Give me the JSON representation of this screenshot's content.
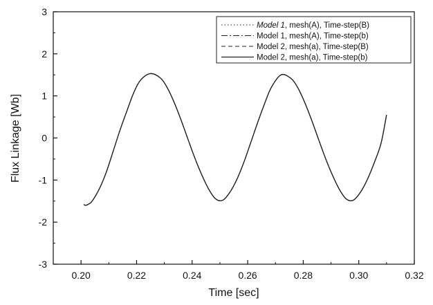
{
  "chart_data": {
    "type": "line",
    "title": "",
    "xlabel": "Time [sec]",
    "ylabel": "Flux Linkage [Wb]",
    "xlim": [
      0.19,
      0.32
    ],
    "ylim": [
      -3,
      3
    ],
    "xticks": [
      0.2,
      0.22,
      0.24,
      0.26,
      0.28,
      0.3,
      0.32
    ],
    "xtick_labels": [
      "0.20",
      "0.22",
      "0.24",
      "0.26",
      "0.28",
      "0.30",
      "0.32"
    ],
    "yticks": [
      -3,
      -2,
      -1,
      0,
      1,
      2,
      3
    ],
    "ytick_labels": [
      "-3",
      "-2",
      "-1",
      "0",
      "1",
      "2",
      "3"
    ],
    "grid": false,
    "legend_position": "top-right",
    "series": [
      {
        "name": "Model 1, mesh(A), Time-step(B)",
        "line_style": "dotted",
        "x": [
          0.201,
          0.2015,
          0.2025,
          0.204,
          0.2065,
          0.209,
          0.2115,
          0.214,
          0.2165,
          0.219,
          0.2215,
          0.225,
          0.2285,
          0.231,
          0.2335,
          0.236,
          0.2385,
          0.241,
          0.2435,
          0.246,
          0.2485,
          0.251,
          0.2535,
          0.256,
          0.2585,
          0.261,
          0.2635,
          0.266,
          0.2685,
          0.272,
          0.2755,
          0.278,
          0.2805,
          0.283,
          0.2855,
          0.288,
          0.2905,
          0.293,
          0.2955,
          0.298,
          0.3005,
          0.303,
          0.3055,
          0.308,
          0.31
        ],
        "y": [
          -1.58,
          -1.6,
          -1.58,
          -1.5,
          -1.22,
          -0.83,
          -0.33,
          0.18,
          0.64,
          1.08,
          1.38,
          1.53,
          1.43,
          1.2,
          0.85,
          0.43,
          -0.03,
          -0.48,
          -0.88,
          -1.22,
          -1.45,
          -1.48,
          -1.3,
          -1.0,
          -0.6,
          -0.13,
          0.35,
          0.8,
          1.2,
          1.5,
          1.42,
          1.2,
          0.85,
          0.43,
          -0.03,
          -0.48,
          -0.88,
          -1.22,
          -1.45,
          -1.48,
          -1.3,
          -1.0,
          -0.6,
          -0.13,
          0.55
        ]
      },
      {
        "name": "Model 1, mesh(A), Time-step(b)",
        "line_style": "dash-dot",
        "x": [
          0.201,
          0.2015,
          0.2025,
          0.204,
          0.2065,
          0.209,
          0.2115,
          0.214,
          0.2165,
          0.219,
          0.2215,
          0.225,
          0.2285,
          0.231,
          0.2335,
          0.236,
          0.2385,
          0.241,
          0.2435,
          0.246,
          0.2485,
          0.251,
          0.2535,
          0.256,
          0.2585,
          0.261,
          0.2635,
          0.266,
          0.2685,
          0.272,
          0.2755,
          0.278,
          0.2805,
          0.283,
          0.2855,
          0.288,
          0.2905,
          0.293,
          0.2955,
          0.298,
          0.3005,
          0.303,
          0.3055,
          0.308,
          0.31
        ],
        "y": [
          -1.58,
          -1.6,
          -1.58,
          -1.5,
          -1.22,
          -0.83,
          -0.33,
          0.18,
          0.64,
          1.08,
          1.38,
          1.53,
          1.43,
          1.2,
          0.85,
          0.43,
          -0.03,
          -0.48,
          -0.88,
          -1.22,
          -1.45,
          -1.48,
          -1.3,
          -1.0,
          -0.6,
          -0.13,
          0.35,
          0.8,
          1.2,
          1.5,
          1.42,
          1.2,
          0.85,
          0.43,
          -0.03,
          -0.48,
          -0.88,
          -1.22,
          -1.45,
          -1.48,
          -1.3,
          -1.0,
          -0.6,
          -0.13,
          0.55
        ]
      },
      {
        "name": "Model 2, mesh(a), Time-step(B)",
        "line_style": "dashed",
        "x": [
          0.201,
          0.2015,
          0.2025,
          0.204,
          0.2065,
          0.209,
          0.2115,
          0.214,
          0.2165,
          0.219,
          0.2215,
          0.225,
          0.2285,
          0.231,
          0.2335,
          0.236,
          0.2385,
          0.241,
          0.2435,
          0.246,
          0.2485,
          0.251,
          0.2535,
          0.256,
          0.2585,
          0.261,
          0.2635,
          0.266,
          0.2685,
          0.272,
          0.2755,
          0.278,
          0.2805,
          0.283,
          0.2855,
          0.288,
          0.2905,
          0.293,
          0.2955,
          0.298,
          0.3005,
          0.303,
          0.3055,
          0.308,
          0.31
        ],
        "y": [
          -1.58,
          -1.6,
          -1.58,
          -1.5,
          -1.22,
          -0.83,
          -0.33,
          0.18,
          0.64,
          1.08,
          1.38,
          1.53,
          1.43,
          1.2,
          0.85,
          0.43,
          -0.03,
          -0.48,
          -0.88,
          -1.22,
          -1.45,
          -1.48,
          -1.3,
          -1.0,
          -0.6,
          -0.13,
          0.35,
          0.8,
          1.2,
          1.5,
          1.42,
          1.2,
          0.85,
          0.43,
          -0.03,
          -0.48,
          -0.88,
          -1.22,
          -1.45,
          -1.48,
          -1.3,
          -1.0,
          -0.6,
          -0.13,
          0.55
        ]
      },
      {
        "name": "Model 2, mesh(a), Time-step(b)",
        "line_style": "solid",
        "x": [
          0.201,
          0.2015,
          0.2025,
          0.204,
          0.2065,
          0.209,
          0.2115,
          0.214,
          0.2165,
          0.219,
          0.2215,
          0.225,
          0.2285,
          0.231,
          0.2335,
          0.236,
          0.2385,
          0.241,
          0.2435,
          0.246,
          0.2485,
          0.251,
          0.2535,
          0.256,
          0.2585,
          0.261,
          0.2635,
          0.266,
          0.2685,
          0.272,
          0.2755,
          0.278,
          0.2805,
          0.283,
          0.2855,
          0.288,
          0.2905,
          0.293,
          0.2955,
          0.298,
          0.3005,
          0.303,
          0.3055,
          0.308,
          0.31
        ],
        "y": [
          -1.58,
          -1.6,
          -1.58,
          -1.5,
          -1.22,
          -0.83,
          -0.33,
          0.18,
          0.64,
          1.08,
          1.38,
          1.53,
          1.43,
          1.2,
          0.85,
          0.43,
          -0.03,
          -0.48,
          -0.88,
          -1.22,
          -1.45,
          -1.48,
          -1.3,
          -1.0,
          -0.6,
          -0.13,
          0.35,
          0.8,
          1.2,
          1.5,
          1.42,
          1.2,
          0.85,
          0.43,
          -0.03,
          -0.48,
          -0.88,
          -1.22,
          -1.45,
          -1.48,
          -1.3,
          -1.0,
          -0.6,
          -0.13,
          0.55
        ]
      }
    ],
    "legend_entries": [
      {
        "prefix": "Model 1",
        "suffix": ", mesh(A), Time-step(B)",
        "line_style": "dotted"
      },
      {
        "prefix": "Model 1",
        "suffix": ", mesh(A), Time-step(b)",
        "line_style": "dash-dot"
      },
      {
        "prefix": "Model 2",
        "suffix": ", mesh(a), Time-step(B)",
        "line_style": "dashed"
      },
      {
        "prefix": "Model 2",
        "suffix": ", mesh(a), Time-step(b)",
        "line_style": "solid"
      }
    ],
    "colors": {
      "line": "#222222",
      "axis": "#111111",
      "background": "#ffffff"
    }
  }
}
